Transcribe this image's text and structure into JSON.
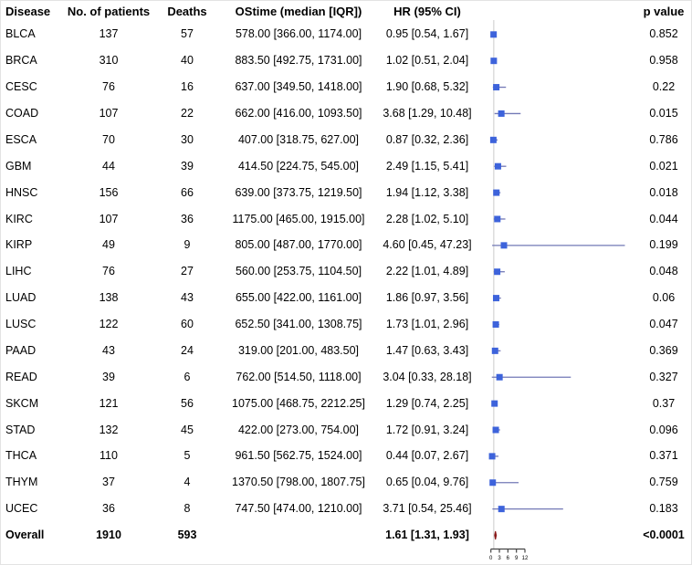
{
  "chart_data": {
    "type": "forest",
    "columns": {
      "disease": "Disease",
      "patients": "No. of patients",
      "deaths": "Deaths",
      "ostime": "OStime (median [IQR])",
      "hr": "HR (95% CI)",
      "pvalue": "p value"
    },
    "rows": [
      {
        "disease": "BLCA",
        "patients": "137",
        "deaths": "57",
        "ostime": "578.00 [366.00, 1174.00]",
        "hr_text": "0.95 [0.54, 1.67]",
        "hr": 0.95,
        "lo": 0.54,
        "hi": 1.67,
        "pvalue": "0.852"
      },
      {
        "disease": "BRCA",
        "patients": "310",
        "deaths": "40",
        "ostime": "883.50 [492.75, 1731.00]",
        "hr_text": "1.02 [0.51, 2.04]",
        "hr": 1.02,
        "lo": 0.51,
        "hi": 2.04,
        "pvalue": "0.958"
      },
      {
        "disease": "CESC",
        "patients": "76",
        "deaths": "16",
        "ostime": "637.00 [349.50, 1418.00]",
        "hr_text": "1.90 [0.68, 5.32]",
        "hr": 1.9,
        "lo": 0.68,
        "hi": 5.32,
        "pvalue": "0.22"
      },
      {
        "disease": "COAD",
        "patients": "107",
        "deaths": "22",
        "ostime": "662.00 [416.00, 1093.50]",
        "hr_text": "3.68 [1.29, 10.48]",
        "hr": 3.68,
        "lo": 1.29,
        "hi": 10.48,
        "pvalue": "0.015"
      },
      {
        "disease": "ESCA",
        "patients": "70",
        "deaths": "30",
        "ostime": "407.00 [318.75, 627.00]",
        "hr_text": "0.87 [0.32, 2.36]",
        "hr": 0.87,
        "lo": 0.32,
        "hi": 2.36,
        "pvalue": "0.786"
      },
      {
        "disease": "GBM",
        "patients": "44",
        "deaths": "39",
        "ostime": "414.50 [224.75, 545.00]",
        "hr_text": "2.49 [1.15, 5.41]",
        "hr": 2.49,
        "lo": 1.15,
        "hi": 5.41,
        "pvalue": "0.021"
      },
      {
        "disease": "HNSC",
        "patients": "156",
        "deaths": "66",
        "ostime": "639.00 [373.75, 1219.50]",
        "hr_text": "1.94 [1.12, 3.38]",
        "hr": 1.94,
        "lo": 1.12,
        "hi": 3.38,
        "pvalue": "0.018"
      },
      {
        "disease": "KIRC",
        "patients": "107",
        "deaths": "36",
        "ostime": "1175.00 [465.00, 1915.00]",
        "hr_text": "2.28 [1.02, 5.10]",
        "hr": 2.28,
        "lo": 1.02,
        "hi": 5.1,
        "pvalue": "0.044"
      },
      {
        "disease": "KIRP",
        "patients": "49",
        "deaths": "9",
        "ostime": "805.00 [487.00, 1770.00]",
        "hr_text": "4.60 [0.45, 47.23]",
        "hr": 4.6,
        "lo": 0.45,
        "hi": 47.23,
        "pvalue": "0.199"
      },
      {
        "disease": "LIHC",
        "patients": "76",
        "deaths": "27",
        "ostime": "560.00 [253.75, 1104.50]",
        "hr_text": "2.22 [1.01, 4.89]",
        "hr": 2.22,
        "lo": 1.01,
        "hi": 4.89,
        "pvalue": "0.048"
      },
      {
        "disease": "LUAD",
        "patients": "138",
        "deaths": "43",
        "ostime": "655.00 [422.00, 1161.00]",
        "hr_text": "1.86 [0.97, 3.56]",
        "hr": 1.86,
        "lo": 0.97,
        "hi": 3.56,
        "pvalue": "0.06"
      },
      {
        "disease": "LUSC",
        "patients": "122",
        "deaths": "60",
        "ostime": "652.50 [341.00, 1308.75]",
        "hr_text": "1.73 [1.01, 2.96]",
        "hr": 1.73,
        "lo": 1.01,
        "hi": 2.96,
        "pvalue": "0.047"
      },
      {
        "disease": "PAAD",
        "patients": "43",
        "deaths": "24",
        "ostime": "319.00 [201.00, 483.50]",
        "hr_text": "1.47 [0.63, 3.43]",
        "hr": 1.47,
        "lo": 0.63,
        "hi": 3.43,
        "pvalue": "0.369"
      },
      {
        "disease": "READ",
        "patients": "39",
        "deaths": "6",
        "ostime": "762.00 [514.50, 1118.00]",
        "hr_text": "3.04 [0.33, 28.18]",
        "hr": 3.04,
        "lo": 0.33,
        "hi": 28.18,
        "pvalue": "0.327"
      },
      {
        "disease": "SKCM",
        "patients": "121",
        "deaths": "56",
        "ostime": "1075.00 [468.75, 2212.25]",
        "hr_text": "1.29 [0.74, 2.25]",
        "hr": 1.29,
        "lo": 0.74,
        "hi": 2.25,
        "pvalue": "0.37"
      },
      {
        "disease": "STAD",
        "patients": "132",
        "deaths": "45",
        "ostime": "422.00 [273.00, 754.00]",
        "hr_text": "1.72 [0.91, 3.24]",
        "hr": 1.72,
        "lo": 0.91,
        "hi": 3.24,
        "pvalue": "0.096"
      },
      {
        "disease": "THCA",
        "patients": "110",
        "deaths": "5",
        "ostime": "961.50 [562.75, 1524.00]",
        "hr_text": "0.44 [0.07, 2.67]",
        "hr": 0.44,
        "lo": 0.07,
        "hi": 2.67,
        "pvalue": "0.371"
      },
      {
        "disease": "THYM",
        "patients": "37",
        "deaths": "4",
        "ostime": "1370.50 [798.00, 1807.75]",
        "hr_text": "0.65 [0.04, 9.76]",
        "hr": 0.65,
        "lo": 0.04,
        "hi": 9.76,
        "pvalue": "0.759"
      },
      {
        "disease": "UCEC",
        "patients": "36",
        "deaths": "8",
        "ostime": "747.50 [474.00, 1210.00]",
        "hr_text": "3.71 [0.54, 25.46]",
        "hr": 3.71,
        "lo": 0.54,
        "hi": 25.46,
        "pvalue": "0.183"
      }
    ],
    "overall": {
      "disease": "Overall",
      "patients": "1910",
      "deaths": "593",
      "ostime": "",
      "hr_text": "1.61 [1.31, 1.93]",
      "hr": 1.61,
      "lo": 1.31,
      "hi": 1.93,
      "pvalue": "<0.0001",
      "bold": true
    },
    "axis_ticks": [
      0,
      3,
      6,
      9,
      12
    ],
    "reference_line_hr": 1,
    "legend_position": "none",
    "grid": false
  },
  "colors": {
    "marker_square": "#3d63db",
    "ci_line": "#7278b6",
    "overall_diamond": "#8b1a1a",
    "reference_line": "#dcdcdc",
    "axis": "#444444",
    "text": "#000000"
  }
}
